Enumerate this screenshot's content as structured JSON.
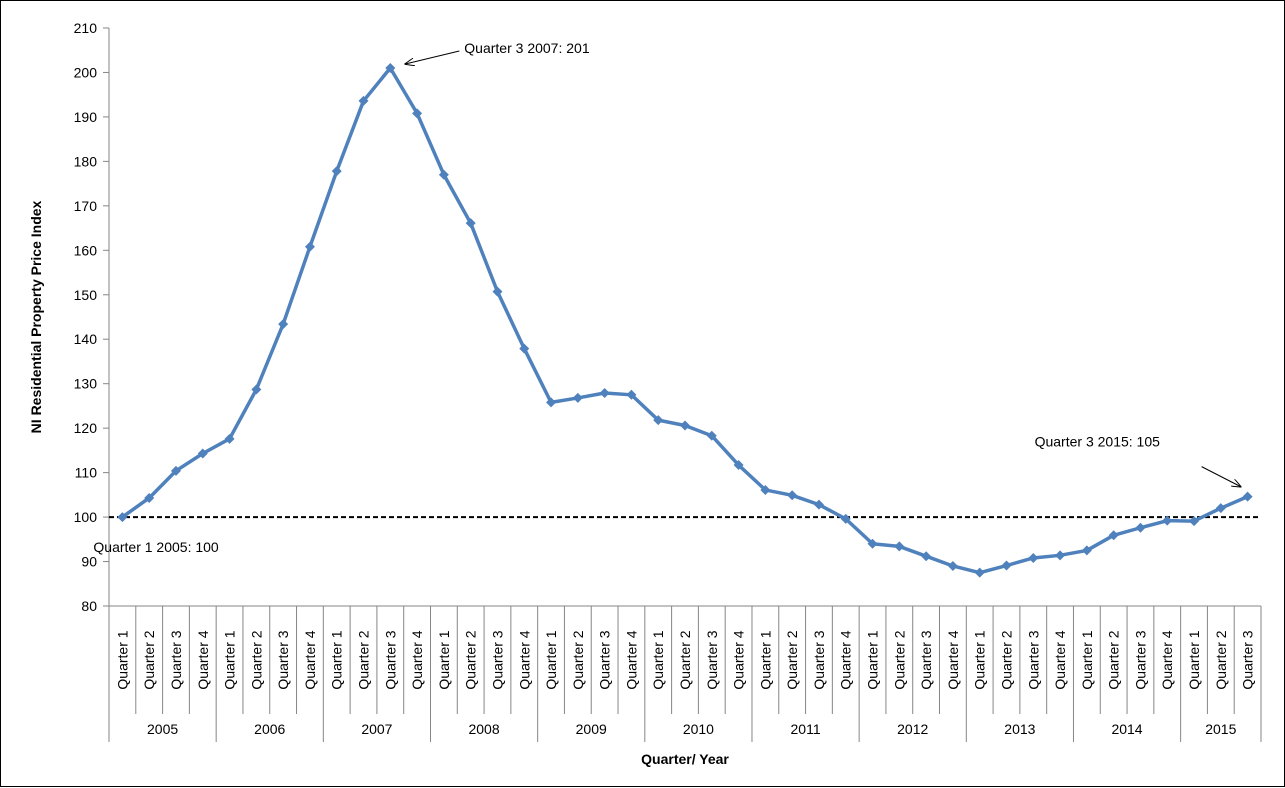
{
  "chart_data": {
    "type": "line",
    "title": "",
    "xlabel": "Quarter/ Year",
    "ylabel": "NI Residential Property Price Index",
    "ylim": [
      80,
      210
    ],
    "ystep": 10,
    "grid": false,
    "legend": "none",
    "years": [
      "2005",
      "2006",
      "2007",
      "2008",
      "2009",
      "2010",
      "2011",
      "2012",
      "2013",
      "2014",
      "2015"
    ],
    "quarter_labels": [
      "Quarter 1",
      "Quarter 2",
      "Quarter 3",
      "Quarter 4"
    ],
    "x": [
      "2005 Q1",
      "2005 Q2",
      "2005 Q3",
      "2005 Q4",
      "2006 Q1",
      "2006 Q2",
      "2006 Q3",
      "2006 Q4",
      "2007 Q1",
      "2007 Q2",
      "2007 Q3",
      "2007 Q4",
      "2008 Q1",
      "2008 Q2",
      "2008 Q3",
      "2008 Q4",
      "2009 Q1",
      "2009 Q2",
      "2009 Q3",
      "2009 Q4",
      "2010 Q1",
      "2010 Q2",
      "2010 Q3",
      "2010 Q4",
      "2011 Q1",
      "2011 Q2",
      "2011 Q3",
      "2011 Q4",
      "2012 Q1",
      "2012 Q2",
      "2012 Q3",
      "2012 Q4",
      "2013 Q1",
      "2013 Q2",
      "2013 Q3",
      "2013 Q4",
      "2014 Q1",
      "2014 Q2",
      "2014 Q3",
      "2014 Q4",
      "2015 Q1",
      "2015 Q2",
      "2015 Q3"
    ],
    "series": [
      {
        "values": [
          100,
          104.3,
          110.4,
          114.3,
          117.6,
          128.7,
          143.4,
          160.8,
          177.8,
          193.6,
          201,
          190.8,
          177,
          166.1,
          150.7,
          137.9,
          125.8,
          126.8,
          127.9,
          127.5,
          121.8,
          120.6,
          118.3,
          111.7,
          106.1,
          104.9,
          102.8,
          99.6,
          94,
          93.4,
          91.2,
          89,
          87.5,
          89.1,
          90.8,
          91.4,
          92.5,
          95.9,
          97.6,
          99.2,
          99.1,
          102,
          104.6
        ],
        "color": "#4F81BD"
      }
    ],
    "reference_line": {
      "value": 100,
      "color": "#000000",
      "style": "dashed"
    },
    "annotations": [
      {
        "text": "Quarter 3 2007:  201",
        "point_index": 10
      },
      {
        "text": "Quarter  3 2015:  105",
        "point_index": 42
      },
      {
        "text": "Quarter 1 2005:  100",
        "point_index": 0
      }
    ]
  }
}
